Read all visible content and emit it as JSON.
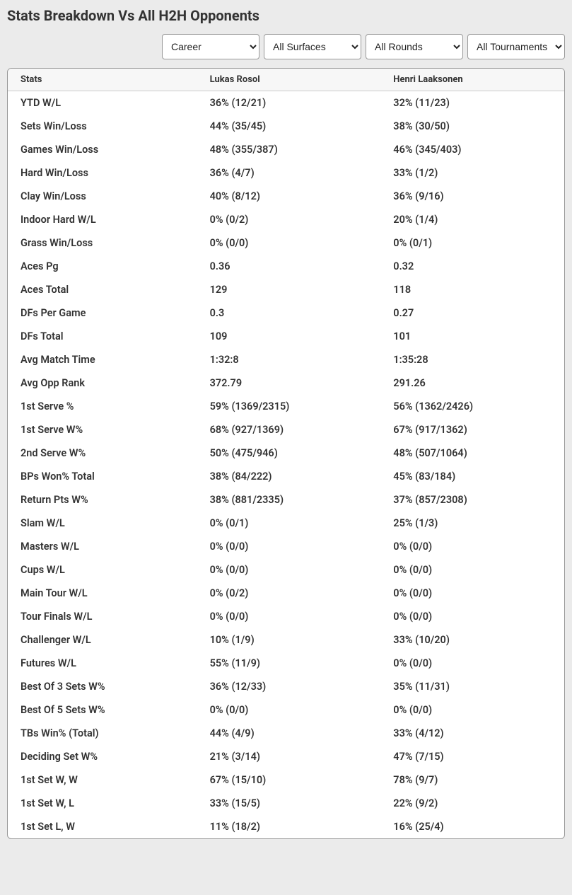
{
  "title": "Stats Breakdown Vs All H2H Opponents",
  "filters": {
    "period": {
      "selected": "Career"
    },
    "surfaces": {
      "selected": "All Surfaces"
    },
    "rounds": {
      "selected": "All Rounds"
    },
    "tournaments": {
      "selected": "All Tournaments"
    }
  },
  "table": {
    "headers": {
      "stats": "Stats",
      "player1": "Lukas Rosol",
      "player2": "Henri Laaksonen"
    },
    "rows": [
      {
        "stat": "YTD W/L",
        "p1": "36% (12/21)",
        "p2": "32% (11/23)"
      },
      {
        "stat": "Sets Win/Loss",
        "p1": "44% (35/45)",
        "p2": "38% (30/50)"
      },
      {
        "stat": "Games Win/Loss",
        "p1": "48% (355/387)",
        "p2": "46% (345/403)"
      },
      {
        "stat": "Hard Win/Loss",
        "p1": "36% (4/7)",
        "p2": "33% (1/2)"
      },
      {
        "stat": "Clay Win/Loss",
        "p1": "40% (8/12)",
        "p2": "36% (9/16)"
      },
      {
        "stat": "Indoor Hard W/L",
        "p1": "0% (0/2)",
        "p2": "20% (1/4)"
      },
      {
        "stat": "Grass Win/Loss",
        "p1": "0% (0/0)",
        "p2": "0% (0/1)"
      },
      {
        "stat": "Aces Pg",
        "p1": "0.36",
        "p2": "0.32"
      },
      {
        "stat": "Aces Total",
        "p1": "129",
        "p2": "118"
      },
      {
        "stat": "DFs Per Game",
        "p1": "0.3",
        "p2": "0.27"
      },
      {
        "stat": "DFs Total",
        "p1": "109",
        "p2": "101"
      },
      {
        "stat": "Avg Match Time",
        "p1": "1:32:8",
        "p2": "1:35:28"
      },
      {
        "stat": "Avg Opp Rank",
        "p1": "372.79",
        "p2": "291.26"
      },
      {
        "stat": "1st Serve %",
        "p1": "59% (1369/2315)",
        "p2": "56% (1362/2426)"
      },
      {
        "stat": "1st Serve W%",
        "p1": "68% (927/1369)",
        "p2": "67% (917/1362)"
      },
      {
        "stat": "2nd Serve W%",
        "p1": "50% (475/946)",
        "p2": "48% (507/1064)"
      },
      {
        "stat": "BPs Won% Total",
        "p1": "38% (84/222)",
        "p2": "45% (83/184)"
      },
      {
        "stat": "Return Pts W%",
        "p1": "38% (881/2335)",
        "p2": "37% (857/2308)"
      },
      {
        "stat": "Slam W/L",
        "p1": "0% (0/1)",
        "p2": "25% (1/3)"
      },
      {
        "stat": "Masters W/L",
        "p1": "0% (0/0)",
        "p2": "0% (0/0)"
      },
      {
        "stat": "Cups W/L",
        "p1": "0% (0/0)",
        "p2": "0% (0/0)"
      },
      {
        "stat": "Main Tour W/L",
        "p1": "0% (0/2)",
        "p2": "0% (0/0)"
      },
      {
        "stat": "Tour Finals W/L",
        "p1": "0% (0/0)",
        "p2": "0% (0/0)"
      },
      {
        "stat": "Challenger W/L",
        "p1": "10% (1/9)",
        "p2": "33% (10/20)"
      },
      {
        "stat": "Futures W/L",
        "p1": "55% (11/9)",
        "p2": "0% (0/0)"
      },
      {
        "stat": "Best Of 3 Sets W%",
        "p1": "36% (12/33)",
        "p2": "35% (11/31)"
      },
      {
        "stat": "Best Of 5 Sets W%",
        "p1": "0% (0/0)",
        "p2": "0% (0/0)"
      },
      {
        "stat": "TBs Win% (Total)",
        "p1": "44% (4/9)",
        "p2": "33% (4/12)"
      },
      {
        "stat": "Deciding Set W%",
        "p1": "21% (3/14)",
        "p2": "47% (7/15)"
      },
      {
        "stat": "1st Set W, W",
        "p1": "67% (15/10)",
        "p2": "78% (9/7)"
      },
      {
        "stat": "1st Set W, L",
        "p1": "33% (15/5)",
        "p2": "22% (9/2)"
      },
      {
        "stat": "1st Set L, W",
        "p1": "11% (18/2)",
        "p2": "16% (25/4)"
      }
    ]
  }
}
